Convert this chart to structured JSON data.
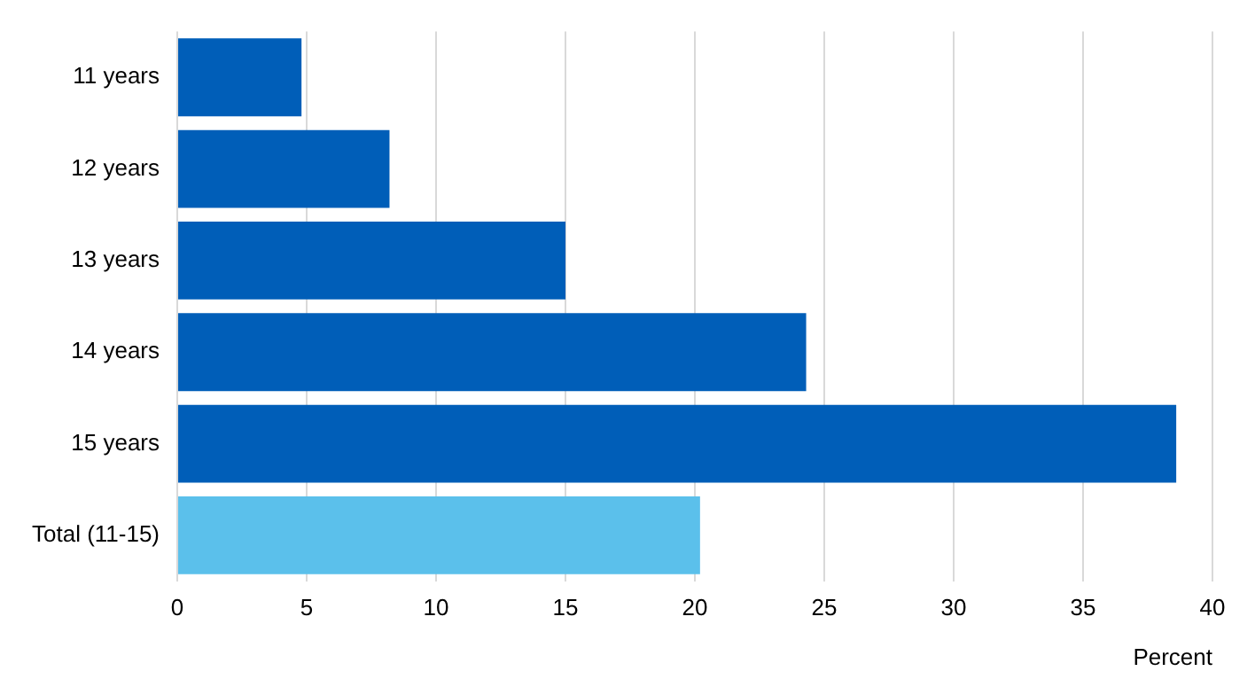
{
  "chart_data": {
    "type": "bar",
    "orientation": "horizontal",
    "categories": [
      "11 years",
      "12 years",
      "13 years",
      "14 years",
      "15 years",
      "Total (11-15)"
    ],
    "values": [
      4.8,
      8.2,
      15.0,
      24.3,
      38.6,
      20.2
    ],
    "colors": [
      "#005eb8",
      "#005eb8",
      "#005eb8",
      "#005eb8",
      "#005eb8",
      "#5bc0eb"
    ],
    "xlabel": "Percent",
    "xlim": [
      0,
      40
    ],
    "xticks": [
      0,
      5,
      10,
      15,
      20,
      25,
      30,
      35,
      40
    ],
    "grid": "x",
    "legend": false
  }
}
